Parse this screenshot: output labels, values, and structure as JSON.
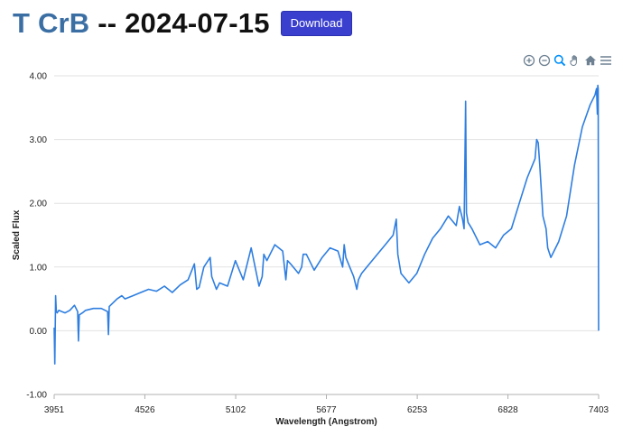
{
  "header": {
    "object_name": "T CrB",
    "separator": " -- ",
    "date": "2024-07-15",
    "download_label": "Download"
  },
  "toolbar": {
    "icons": [
      "zoom-in-icon",
      "zoom-out-icon",
      "zoom-selection-icon",
      "pan-hand-icon",
      "home-reset-icon",
      "menu-icon"
    ],
    "icon_color": "#6e8192",
    "active_color": "#008ffb"
  },
  "colors": {
    "line": "#2e7ee0",
    "grid": "#e2e2e2",
    "title": "#3b6fa4",
    "button": "#3a3fce"
  },
  "chart_data": {
    "type": "line",
    "xlabel": "Wavelength (Angstrom)",
    "ylabel": "Scaled Flux",
    "xlim": [
      3951,
      7403
    ],
    "ylim": [
      -1.0,
      4.0
    ],
    "xticks": [
      3951,
      4526,
      5102,
      5677,
      6253,
      6828,
      7403
    ],
    "yticks": [
      "-1.00",
      "0.00",
      "1.00",
      "2.00",
      "3.00",
      "4.00"
    ],
    "grid": true,
    "series": [
      {
        "x": [
          3951,
          3955,
          3960,
          3965,
          3970,
          3980,
          4000,
          4020,
          4050,
          4080,
          4100,
          4105,
          4110,
          4130,
          4150,
          4200,
          4250,
          4290,
          4295,
          4300,
          4350,
          4380,
          4400,
          4450,
          4500,
          4550,
          4600,
          4650,
          4700,
          4750,
          4800,
          4840,
          4855,
          4870,
          4900,
          4940,
          4950,
          4980,
          5000,
          5050,
          5100,
          5150,
          5200,
          5250,
          5270,
          5280,
          5300,
          5350,
          5400,
          5420,
          5430,
          5450,
          5500,
          5520,
          5530,
          5550,
          5600,
          5650,
          5700,
          5750,
          5780,
          5790,
          5800,
          5850,
          5870,
          5880,
          5900,
          5950,
          6000,
          6050,
          6100,
          6120,
          6130,
          6150,
          6200,
          6250,
          6300,
          6350,
          6400,
          6450,
          6500,
          6520,
          6540,
          6550,
          6560,
          6565,
          6575,
          6600,
          6650,
          6700,
          6750,
          6800,
          6850,
          6900,
          6950,
          7000,
          7010,
          7020,
          7030,
          7050,
          7070,
          7080,
          7100,
          7120,
          7150,
          7200,
          7250,
          7300,
          7350,
          7380,
          7390,
          7395,
          7398,
          7400,
          7403
        ],
        "y": [
          0.05,
          -0.52,
          0.55,
          0.3,
          0.28,
          0.32,
          0.3,
          0.28,
          0.32,
          0.4,
          0.3,
          -0.16,
          0.25,
          0.28,
          0.32,
          0.35,
          0.35,
          0.3,
          -0.06,
          0.38,
          0.5,
          0.55,
          0.5,
          0.55,
          0.6,
          0.65,
          0.62,
          0.7,
          0.6,
          0.72,
          0.8,
          1.05,
          0.65,
          0.68,
          1.0,
          1.15,
          0.85,
          0.65,
          0.75,
          0.7,
          1.1,
          0.8,
          1.3,
          0.7,
          0.85,
          1.2,
          1.1,
          1.35,
          1.25,
          0.8,
          1.1,
          1.05,
          0.9,
          1.0,
          1.2,
          1.2,
          0.95,
          1.15,
          1.3,
          1.25,
          1.0,
          1.35,
          1.15,
          0.85,
          0.65,
          0.8,
          0.9,
          1.05,
          1.2,
          1.35,
          1.5,
          1.75,
          1.2,
          0.9,
          0.75,
          0.9,
          1.2,
          1.45,
          1.6,
          1.8,
          1.65,
          1.95,
          1.75,
          1.6,
          3.6,
          1.85,
          1.7,
          1.6,
          1.35,
          1.4,
          1.3,
          1.5,
          1.6,
          2.0,
          2.4,
          2.7,
          3.0,
          2.95,
          2.6,
          1.8,
          1.6,
          1.3,
          1.15,
          1.25,
          1.4,
          1.8,
          2.6,
          3.2,
          3.55,
          3.7,
          3.8,
          3.4,
          3.85,
          3.8,
          0.0
        ]
      }
    ]
  }
}
